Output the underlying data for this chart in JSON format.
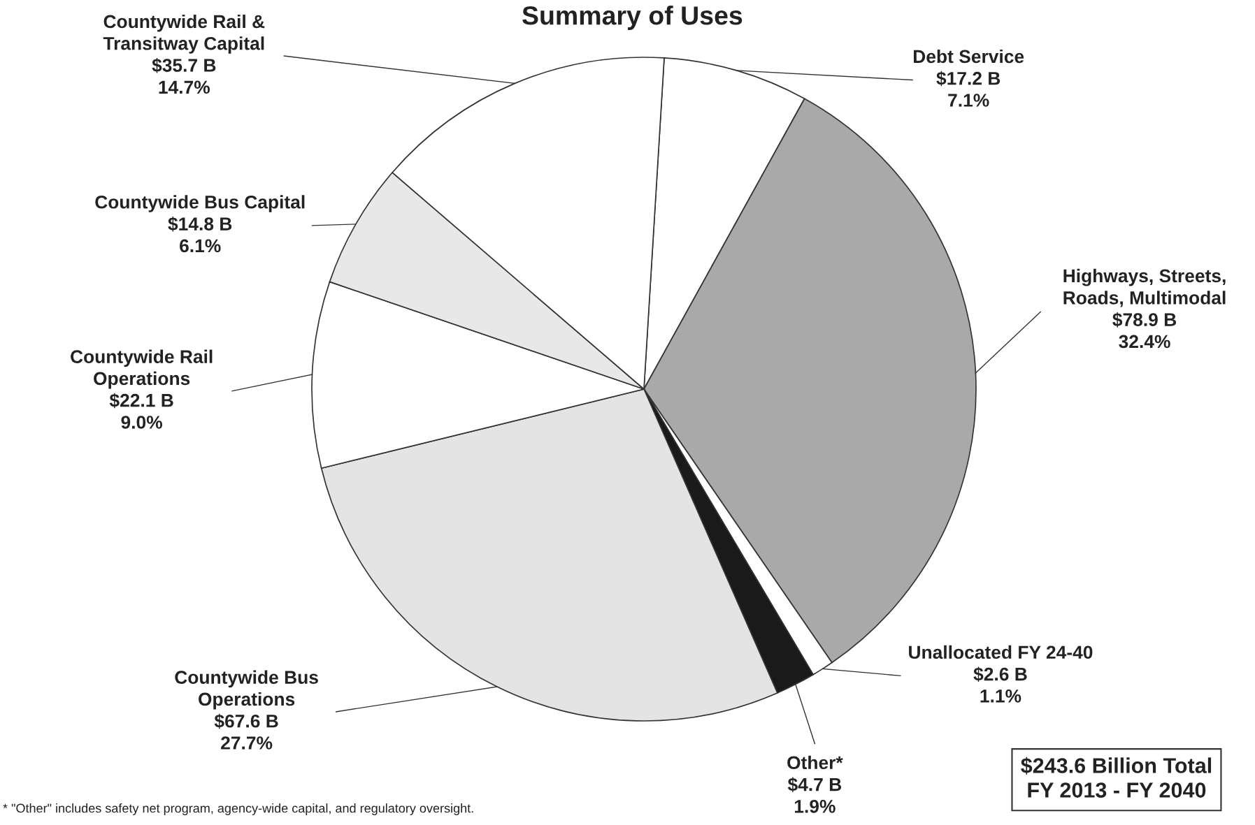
{
  "chart_data": {
    "type": "pie",
    "title": "Summary of Uses",
    "categories": [
      "Debt Service",
      "Highways, Streets,\nRoads, Multimodal",
      "Unallocated FY 24-40",
      "Other*",
      "Countywide Bus\nOperations",
      "Countywide Rail\nOperations",
      "Countywide Bus Capital",
      "Countywide Rail &\nTransitway Capital"
    ],
    "values": [
      17.2,
      78.9,
      2.6,
      4.7,
      67.6,
      22.1,
      14.8,
      35.7
    ],
    "value_labels": [
      "$17.2 B\n7.1%",
      "$78.9 B\n32.4%",
      "$2.6 B\n1.1%",
      "$4.7 B\n1.9%",
      "$67.6 B\n27.7%",
      "$22.1 B\n9.0%",
      "$14.8 B\n6.1%",
      "$35.7 B\n14.7%"
    ],
    "colors": [
      "#ffffff",
      "#a9a9a9",
      "#ffffff",
      "#1a1a1a",
      "#e4e4e4",
      "#ffffff",
      "#e8e8e8",
      "#ffffff"
    ],
    "annotations": [
      "$243.6 Billion Total\nFY 2013 - FY 2040",
      "* \"Other\" includes safety net program, agency-wide capital, and regulatory oversight."
    ],
    "legend": false
  }
}
